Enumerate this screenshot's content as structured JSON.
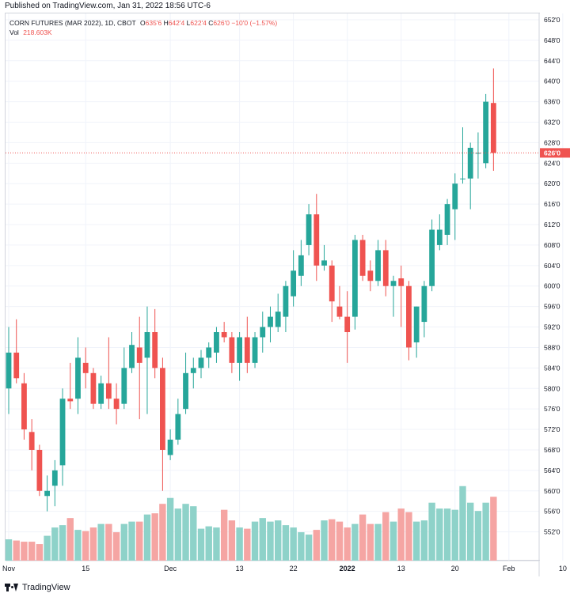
{
  "header": {
    "published_text": "Published on TradingView.com, Jan 31, 2022 18:56 UTC-6"
  },
  "legend": {
    "symbol": "CORN FUTURES (MAR 2022), 1D, CBOT",
    "o_key": "O",
    "o_val": "635'6",
    "h_key": "H",
    "h_val": "642'4",
    "l_key": "L",
    "l_val": "622'4",
    "c_key": "C",
    "c_val": "626'0",
    "change": "−10'0 (−1.57%)",
    "vol_label": "Vol",
    "vol_value": "218.603K"
  },
  "footer": {
    "brand": "TradingView"
  },
  "colors": {
    "up": "#26a69a",
    "down": "#ef5350",
    "vol_up": "#8ed2c9",
    "vol_down": "#f5a5a3",
    "grid": "#f0f3fa",
    "last_price_line": "#ef5350"
  },
  "chart_data": {
    "type": "candlestick",
    "title": "CORN FUTURES (MAR 2022), 1D, CBOT",
    "last_price_label": "626'0",
    "last_price": 626.0,
    "ylim": [
      549,
      652
    ],
    "y_ticks": [
      {
        "v": 552,
        "label": "552'0"
      },
      {
        "v": 556,
        "label": "556'0"
      },
      {
        "v": 560,
        "label": "560'0"
      },
      {
        "v": 564,
        "label": "564'0"
      },
      {
        "v": 568,
        "label": "568'0"
      },
      {
        "v": 572,
        "label": "572'0"
      },
      {
        "v": 576,
        "label": "576'0"
      },
      {
        "v": 580,
        "label": "580'0"
      },
      {
        "v": 584,
        "label": "584'0"
      },
      {
        "v": 588,
        "label": "588'0"
      },
      {
        "v": 592,
        "label": "592'0"
      },
      {
        "v": 596,
        "label": "596'0"
      },
      {
        "v": 600,
        "label": "600'0"
      },
      {
        "v": 604,
        "label": "604'0"
      },
      {
        "v": 608,
        "label": "608'0"
      },
      {
        "v": 612,
        "label": "612'0"
      },
      {
        "v": 616,
        "label": "616'0"
      },
      {
        "v": 620,
        "label": "620'0"
      },
      {
        "v": 624,
        "label": "624'0"
      },
      {
        "v": 628,
        "label": "628'0"
      },
      {
        "v": 632,
        "label": "632'0"
      },
      {
        "v": 636,
        "label": "636'0"
      },
      {
        "v": 640,
        "label": "640'0"
      },
      {
        "v": 644,
        "label": "644'0"
      },
      {
        "v": 648,
        "label": "648'0"
      },
      {
        "v": 652,
        "label": "652'0"
      }
    ],
    "x_ticks": [
      {
        "index": 0,
        "label": "Nov"
      },
      {
        "index": 10,
        "label": "15"
      },
      {
        "index": 21,
        "label": "Dec"
      },
      {
        "index": 30,
        "label": "13"
      },
      {
        "index": 37,
        "label": "22"
      },
      {
        "index": 44,
        "label": "2022",
        "bold": true
      },
      {
        "index": 51,
        "label": "13"
      },
      {
        "index": 58,
        "label": "20"
      },
      {
        "index": 65,
        "label": "Feb"
      },
      {
        "index": 72,
        "label": "10"
      }
    ],
    "candles": [
      {
        "o": 580.0,
        "h": 592.0,
        "l": 575.0,
        "c": 587.0
      },
      {
        "o": 587.0,
        "h": 593.5,
        "l": 581.0,
        "c": 582.0
      },
      {
        "o": 581.0,
        "h": 583.0,
        "l": 570.0,
        "c": 572.0
      },
      {
        "o": 571.5,
        "h": 574.0,
        "l": 564.0,
        "c": 568.0
      },
      {
        "o": 568.0,
        "h": 569.0,
        "l": 559.0,
        "c": 560.0
      },
      {
        "o": 559.0,
        "h": 563.0,
        "l": 556.0,
        "c": 560.0
      },
      {
        "o": 561.0,
        "h": 566.0,
        "l": 557.0,
        "c": 564.0
      },
      {
        "o": 565.0,
        "h": 580.0,
        "l": 561.0,
        "c": 578.0
      },
      {
        "o": 578.0,
        "h": 585.0,
        "l": 576.0,
        "c": 577.5
      },
      {
        "o": 578.0,
        "h": 590.0,
        "l": 575.0,
        "c": 586.0
      },
      {
        "o": 585.0,
        "h": 588.0,
        "l": 580.0,
        "c": 583.0
      },
      {
        "o": 583.0,
        "h": 584.0,
        "l": 576.0,
        "c": 577.0
      },
      {
        "o": 577.0,
        "h": 582.5,
        "l": 576.0,
        "c": 581.0
      },
      {
        "o": 581.0,
        "h": 590.0,
        "l": 576.0,
        "c": 578.0
      },
      {
        "o": 578.0,
        "h": 581.0,
        "l": 573.0,
        "c": 576.0
      },
      {
        "o": 577.0,
        "h": 588.0,
        "l": 576.0,
        "c": 584.0
      },
      {
        "o": 584.0,
        "h": 591.0,
        "l": 583.0,
        "c": 588.5
      },
      {
        "o": 588.0,
        "h": 594.0,
        "l": 574.0,
        "c": 585.0
      },
      {
        "o": 586.0,
        "h": 596.0,
        "l": 575.0,
        "c": 591.0
      },
      {
        "o": 591.0,
        "h": 595.5,
        "l": 582.0,
        "c": 584.0
      },
      {
        "o": 584.0,
        "h": 586.0,
        "l": 560.0,
        "c": 568.0
      },
      {
        "o": 567.0,
        "h": 572.0,
        "l": 566.0,
        "c": 570.0
      },
      {
        "o": 570.0,
        "h": 578.0,
        "l": 569.0,
        "c": 575.0
      },
      {
        "o": 576.0,
        "h": 587.0,
        "l": 575.0,
        "c": 583.0
      },
      {
        "o": 583.0,
        "h": 586.0,
        "l": 580.0,
        "c": 584.0
      },
      {
        "o": 584.0,
        "h": 587.5,
        "l": 582.0,
        "c": 586.0
      },
      {
        "o": 586.0,
        "h": 589.0,
        "l": 584.0,
        "c": 588.0
      },
      {
        "o": 587.0,
        "h": 592.0,
        "l": 585.0,
        "c": 591.0
      },
      {
        "o": 591.0,
        "h": 593.0,
        "l": 589.0,
        "c": 590.0
      },
      {
        "o": 590.0,
        "h": 591.0,
        "l": 583.0,
        "c": 585.0
      },
      {
        "o": 585.0,
        "h": 591.0,
        "l": 581.5,
        "c": 590.0
      },
      {
        "o": 590.0,
        "h": 594.0,
        "l": 583.0,
        "c": 585.0
      },
      {
        "o": 585.0,
        "h": 591.0,
        "l": 584.0,
        "c": 590.0
      },
      {
        "o": 590.0,
        "h": 595.0,
        "l": 587.0,
        "c": 592.0
      },
      {
        "o": 592.0,
        "h": 596.0,
        "l": 589.0,
        "c": 594.0
      },
      {
        "o": 592.0,
        "h": 598.5,
        "l": 591.0,
        "c": 595.0
      },
      {
        "o": 594.0,
        "h": 601.0,
        "l": 591.0,
        "c": 600.0
      },
      {
        "o": 598.0,
        "h": 607.0,
        "l": 596.0,
        "c": 603.0
      },
      {
        "o": 602.0,
        "h": 609.0,
        "l": 600.0,
        "c": 606.0
      },
      {
        "o": 608.0,
        "h": 616.0,
        "l": 606.0,
        "c": 614.0
      },
      {
        "o": 614.0,
        "h": 618.0,
        "l": 601.0,
        "c": 604.0
      },
      {
        "o": 604.0,
        "h": 608.0,
        "l": 603.0,
        "c": 605.0
      },
      {
        "o": 604.0,
        "h": 605.0,
        "l": 593.0,
        "c": 597.0
      },
      {
        "o": 596.0,
        "h": 600.0,
        "l": 593.5,
        "c": 594.0
      },
      {
        "o": 594.0,
        "h": 599.0,
        "l": 585.0,
        "c": 591.0
      },
      {
        "o": 594.0,
        "h": 610.0,
        "l": 591.5,
        "c": 609.0
      },
      {
        "o": 609.0,
        "h": 610.0,
        "l": 601.0,
        "c": 602.0
      },
      {
        "o": 603.0,
        "h": 605.0,
        "l": 599.0,
        "c": 601.0
      },
      {
        "o": 601.0,
        "h": 609.0,
        "l": 600.0,
        "c": 607.0
      },
      {
        "o": 607.0,
        "h": 609.0,
        "l": 598.0,
        "c": 600.0
      },
      {
        "o": 600.0,
        "h": 602.0,
        "l": 594.0,
        "c": 601.0
      },
      {
        "o": 601.5,
        "h": 604.0,
        "l": 592.0,
        "c": 600.0
      },
      {
        "o": 600.0,
        "h": 601.0,
        "l": 585.5,
        "c": 588.0
      },
      {
        "o": 589.0,
        "h": 596.0,
        "l": 586.0,
        "c": 596.0
      },
      {
        "o": 593.0,
        "h": 601.0,
        "l": 590.0,
        "c": 600.0
      },
      {
        "o": 600.0,
        "h": 613.0,
        "l": 599.0,
        "c": 611.0
      },
      {
        "o": 608.0,
        "h": 614.0,
        "l": 607.0,
        "c": 611.0
      },
      {
        "o": 610.0,
        "h": 617.0,
        "l": 608.0,
        "c": 616.0
      },
      {
        "o": 615.0,
        "h": 622.0,
        "l": 609.0,
        "c": 620.0
      },
      {
        "o": 621.0,
        "h": 631.0,
        "l": 620.0,
        "c": 621.0
      },
      {
        "o": 621.0,
        "h": 628.0,
        "l": 615.0,
        "c": 627.0
      },
      {
        "o": 626.0,
        "h": 630.0,
        "l": 621.0,
        "c": 626.0
      },
      {
        "o": 624.0,
        "h": 637.5,
        "l": 623.0,
        "c": 636.0
      },
      {
        "o": 635.75,
        "h": 642.5,
        "l": 622.5,
        "c": 626.0
      }
    ],
    "volume": {
      "min": 14,
      "max": 131,
      "values": [
        30,
        29,
        28,
        28,
        26,
        33,
        40,
        42,
        48,
        38,
        37,
        40,
        43,
        43,
        36,
        43,
        45,
        45,
        51,
        52,
        60,
        65,
        56,
        60,
        58,
        39,
        41,
        40,
        55,
        46,
        40,
        39,
        45,
        48,
        45,
        46,
        42,
        40,
        36,
        34,
        38,
        46,
        47,
        45,
        40,
        43,
        51,
        43,
        43,
        53,
        45,
        56,
        53,
        45,
        46,
        61,
        56,
        56,
        55,
        75,
        61,
        54,
        61,
        66
      ]
    }
  }
}
